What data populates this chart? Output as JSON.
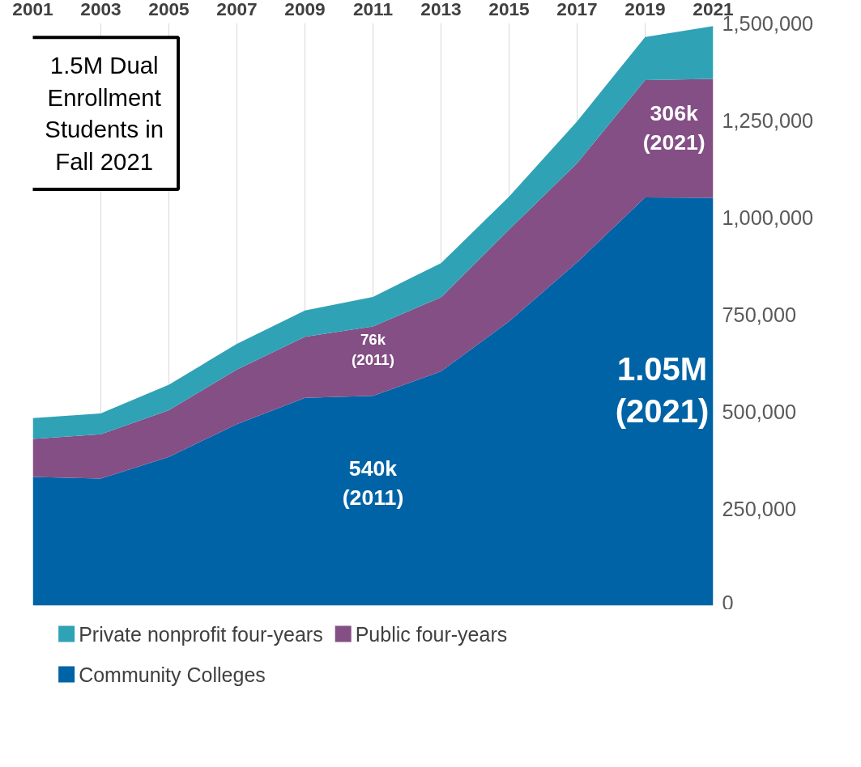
{
  "chart_data": {
    "type": "area",
    "stacked": true,
    "x": [
      2001,
      2003,
      2005,
      2007,
      2009,
      2011,
      2013,
      2015,
      2017,
      2019,
      2021
    ],
    "series": [
      {
        "name": "Community Colleges",
        "color": "#0063a6",
        "values": [
          331000,
          327000,
          383000,
          467000,
          535000,
          540000,
          603000,
          732000,
          884000,
          1051000,
          1050000
        ]
      },
      {
        "name": "Public four-years",
        "color": "#844f85",
        "values": [
          98000,
          114000,
          120000,
          141000,
          157000,
          179000,
          191000,
          236000,
          255000,
          302000,
          306000
        ]
      },
      {
        "name": "Private nonprofit four-years",
        "color": "#30a2b6",
        "values": [
          54000,
          54000,
          66000,
          66000,
          68000,
          76000,
          88000,
          85000,
          108000,
          111000,
          136000
        ]
      }
    ],
    "xlim": [
      2001,
      2021
    ],
    "ylim": [
      0,
      1500000
    ],
    "xticks": [
      2001,
      2003,
      2005,
      2007,
      2009,
      2011,
      2013,
      2015,
      2017,
      2019,
      2021
    ],
    "yticks": [
      {
        "value": 0,
        "label": "0"
      },
      {
        "value": 250000,
        "label": "250,000"
      },
      {
        "value": 500000,
        "label": "500,000"
      },
      {
        "value": 750000,
        "label": "750,000"
      },
      {
        "value": 1000000,
        "label": "1,000,000"
      },
      {
        "value": 1250000,
        "label": "1,250,000"
      },
      {
        "value": 1500000,
        "label": "1,500,000"
      }
    ],
    "annotations": [
      "1.5M Dual Enrollment Students in Fall 2021",
      "540k (2011)",
      "76k (2011)",
      "1.05M (2021)",
      "306k (2021)"
    ],
    "grid": "x",
    "legend": "bottom"
  }
}
